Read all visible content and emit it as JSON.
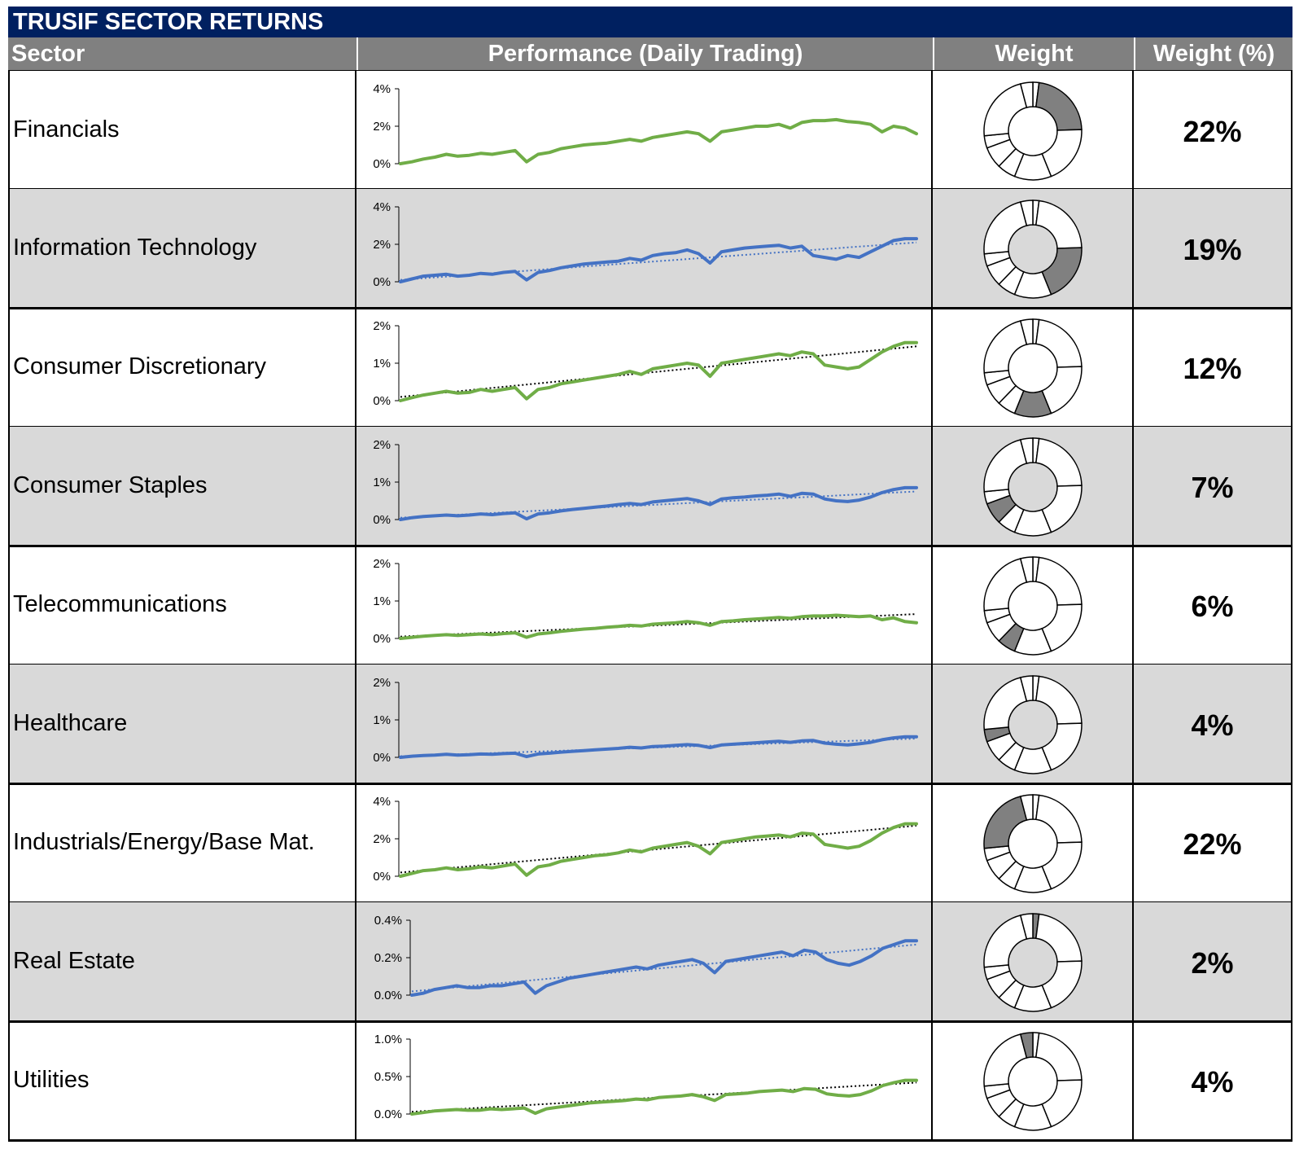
{
  "title": "TRUSIF SECTOR RETURNS",
  "headers": {
    "sector": "Sector",
    "performance": "Performance (Daily Trading)",
    "weight": "Weight",
    "weight_pct": "Weight (%)"
  },
  "colors": {
    "title_bg": "#002060",
    "header_bg": "#808080",
    "green_line": "#70ad47",
    "blue_line": "#4472c4",
    "highlight_segment": "#808080",
    "shaded_row": "#d9d9d9"
  },
  "sectors": [
    {
      "name": "Financials",
      "weight_pct": "22%"
    },
    {
      "name": "Information Technology",
      "weight_pct": "19%"
    },
    {
      "name": "Consumer Discretionary",
      "weight_pct": "12%"
    },
    {
      "name": "Consumer Staples",
      "weight_pct": "7%"
    },
    {
      "name": "Telecommunications",
      "weight_pct": "6%"
    },
    {
      "name": "Healthcare",
      "weight_pct": "4%"
    },
    {
      "name": "Industrials/Energy/Base Mat.",
      "weight_pct": "22%"
    },
    {
      "name": "Real Estate",
      "weight_pct": "2%"
    },
    {
      "name": "Utilities",
      "weight_pct": "4%"
    }
  ],
  "chart_data": [
    {
      "type": "line",
      "sector": "Financials",
      "ytick_labels": [
        "4%",
        "2%",
        "0%"
      ],
      "ylim": [
        0,
        4
      ],
      "line_color": "green",
      "trendline": false,
      "series": [
        {
          "values": [
            0,
            0.1,
            0.25,
            0.35,
            0.5,
            0.4,
            0.45,
            0.55,
            0.5,
            0.6,
            0.7,
            0.1,
            0.5,
            0.6,
            0.8,
            0.9,
            1.0,
            1.05,
            1.1,
            1.2,
            1.3,
            1.2,
            1.4,
            1.5,
            1.6,
            1.7,
            1.6,
            1.2,
            1.7,
            1.8,
            1.9,
            2.0,
            2.0,
            2.1,
            1.9,
            2.2,
            2.3,
            2.3,
            2.35,
            2.25,
            2.2,
            2.1,
            1.7,
            2.0,
            1.9,
            1.6
          ]
        }
      ]
    },
    {
      "type": "line",
      "sector": "Information Technology",
      "ytick_labels": [
        "4%",
        "2%",
        "0%"
      ],
      "ylim": [
        0,
        4
      ],
      "line_color": "blue",
      "trendline": true,
      "trend": [
        0.1,
        2.1
      ],
      "series": [
        {
          "values": [
            0,
            0.15,
            0.3,
            0.35,
            0.4,
            0.3,
            0.35,
            0.45,
            0.4,
            0.5,
            0.55,
            0.1,
            0.5,
            0.6,
            0.75,
            0.85,
            0.95,
            1.0,
            1.05,
            1.1,
            1.25,
            1.15,
            1.4,
            1.5,
            1.55,
            1.7,
            1.5,
            1.0,
            1.6,
            1.7,
            1.8,
            1.85,
            1.9,
            1.95,
            1.8,
            1.9,
            1.4,
            1.3,
            1.2,
            1.4,
            1.3,
            1.6,
            1.9,
            2.2,
            2.3,
            2.3
          ]
        }
      ]
    },
    {
      "type": "line",
      "sector": "Consumer Discretionary",
      "ytick_labels": [
        "2%",
        "1%",
        "0%"
      ],
      "ylim": [
        0,
        2
      ],
      "line_color": "green",
      "trendline": true,
      "trend": [
        0.1,
        1.45
      ],
      "series": [
        {
          "values": [
            0,
            0.08,
            0.15,
            0.2,
            0.25,
            0.2,
            0.22,
            0.3,
            0.25,
            0.3,
            0.35,
            0.05,
            0.3,
            0.35,
            0.45,
            0.5,
            0.55,
            0.6,
            0.65,
            0.7,
            0.78,
            0.7,
            0.85,
            0.9,
            0.95,
            1.0,
            0.95,
            0.65,
            1.0,
            1.05,
            1.1,
            1.15,
            1.2,
            1.25,
            1.2,
            1.3,
            1.25,
            0.95,
            0.9,
            0.85,
            0.9,
            1.1,
            1.3,
            1.45,
            1.55,
            1.55
          ]
        }
      ]
    },
    {
      "type": "line",
      "sector": "Consumer Staples",
      "ytick_labels": [
        "2%",
        "1%",
        "0%"
      ],
      "ylim": [
        0,
        2
      ],
      "line_color": "blue",
      "trendline": true,
      "trend": [
        0.05,
        0.75
      ],
      "series": [
        {
          "values": [
            0,
            0.05,
            0.08,
            0.1,
            0.12,
            0.1,
            0.12,
            0.15,
            0.13,
            0.16,
            0.18,
            0.02,
            0.15,
            0.18,
            0.23,
            0.27,
            0.3,
            0.33,
            0.36,
            0.4,
            0.43,
            0.4,
            0.47,
            0.5,
            0.53,
            0.56,
            0.5,
            0.4,
            0.55,
            0.58,
            0.6,
            0.63,
            0.65,
            0.68,
            0.62,
            0.7,
            0.68,
            0.55,
            0.5,
            0.48,
            0.52,
            0.6,
            0.72,
            0.8,
            0.85,
            0.85
          ]
        }
      ]
    },
    {
      "type": "line",
      "sector": "Telecommunications",
      "ytick_labels": [
        "2%",
        "1%",
        "0%"
      ],
      "ylim": [
        0,
        2
      ],
      "line_color": "green",
      "trendline": true,
      "trend": [
        0.05,
        0.65
      ],
      "series": [
        {
          "values": [
            0,
            0.03,
            0.06,
            0.08,
            0.1,
            0.08,
            0.1,
            0.12,
            0.1,
            0.13,
            0.15,
            0.03,
            0.12,
            0.15,
            0.19,
            0.22,
            0.25,
            0.27,
            0.3,
            0.32,
            0.35,
            0.33,
            0.38,
            0.4,
            0.42,
            0.45,
            0.42,
            0.35,
            0.45,
            0.47,
            0.5,
            0.52,
            0.54,
            0.56,
            0.54,
            0.58,
            0.6,
            0.6,
            0.62,
            0.6,
            0.58,
            0.6,
            0.5,
            0.55,
            0.45,
            0.42
          ]
        }
      ]
    },
    {
      "type": "line",
      "sector": "Healthcare",
      "ytick_labels": [
        "2%",
        "1%",
        "0%"
      ],
      "ylim": [
        0,
        2
      ],
      "line_color": "blue",
      "trendline": true,
      "trend": [
        0.03,
        0.5
      ],
      "series": [
        {
          "values": [
            0,
            0.03,
            0.05,
            0.06,
            0.08,
            0.06,
            0.07,
            0.09,
            0.08,
            0.1,
            0.11,
            0.02,
            0.09,
            0.11,
            0.14,
            0.16,
            0.18,
            0.2,
            0.22,
            0.24,
            0.27,
            0.25,
            0.29,
            0.3,
            0.32,
            0.34,
            0.32,
            0.26,
            0.33,
            0.35,
            0.37,
            0.39,
            0.41,
            0.43,
            0.4,
            0.44,
            0.45,
            0.38,
            0.35,
            0.33,
            0.36,
            0.4,
            0.47,
            0.52,
            0.55,
            0.55
          ]
        }
      ]
    },
    {
      "type": "line",
      "sector": "Industrials/Energy/Base Mat.",
      "ytick_labels": [
        "4%",
        "2%",
        "0%"
      ],
      "ylim": [
        0,
        4
      ],
      "line_color": "green",
      "trendline": true,
      "trend": [
        0.2,
        2.7
      ],
      "series": [
        {
          "values": [
            0,
            0.15,
            0.3,
            0.35,
            0.45,
            0.35,
            0.4,
            0.5,
            0.45,
            0.55,
            0.65,
            0.05,
            0.5,
            0.6,
            0.8,
            0.9,
            1.0,
            1.1,
            1.15,
            1.25,
            1.4,
            1.3,
            1.5,
            1.6,
            1.7,
            1.8,
            1.6,
            1.2,
            1.8,
            1.9,
            2.0,
            2.1,
            2.15,
            2.2,
            2.1,
            2.3,
            2.25,
            1.7,
            1.6,
            1.5,
            1.6,
            1.9,
            2.3,
            2.6,
            2.8,
            2.8
          ]
        }
      ]
    },
    {
      "type": "line",
      "sector": "Real Estate",
      "ytick_labels": [
        "0.4%",
        "0.2%",
        "0.0%"
      ],
      "ylim": [
        0,
        0.4
      ],
      "line_color": "blue",
      "trendline": true,
      "trend": [
        0.02,
        0.27
      ],
      "series": [
        {
          "values": [
            0,
            0.01,
            0.03,
            0.04,
            0.05,
            0.04,
            0.04,
            0.05,
            0.05,
            0.06,
            0.07,
            0.01,
            0.05,
            0.07,
            0.09,
            0.1,
            0.11,
            0.12,
            0.13,
            0.14,
            0.15,
            0.14,
            0.16,
            0.17,
            0.18,
            0.19,
            0.17,
            0.12,
            0.18,
            0.19,
            0.2,
            0.21,
            0.22,
            0.23,
            0.21,
            0.24,
            0.23,
            0.19,
            0.17,
            0.16,
            0.18,
            0.21,
            0.25,
            0.27,
            0.29,
            0.29
          ]
        }
      ]
    },
    {
      "type": "line",
      "sector": "Utilities",
      "ytick_labels": [
        "1.0%",
        "0.5%",
        "0.0%"
      ],
      "ylim": [
        0,
        1
      ],
      "line_color": "green",
      "trendline": true,
      "trend": [
        0.03,
        0.42
      ],
      "series": [
        {
          "values": [
            0,
            0.02,
            0.04,
            0.05,
            0.06,
            0.05,
            0.05,
            0.07,
            0.06,
            0.07,
            0.08,
            0.01,
            0.07,
            0.09,
            0.11,
            0.13,
            0.15,
            0.16,
            0.17,
            0.18,
            0.2,
            0.19,
            0.22,
            0.23,
            0.24,
            0.26,
            0.23,
            0.18,
            0.26,
            0.27,
            0.28,
            0.3,
            0.31,
            0.32,
            0.3,
            0.34,
            0.33,
            0.27,
            0.25,
            0.24,
            0.26,
            0.31,
            0.38,
            0.42,
            0.45,
            0.45
          ]
        }
      ]
    },
    {
      "type": "pie",
      "description": "Weight donut: each row shows the same donut with the row's sector segment highlighted",
      "slice_order": [
        "Real Estate",
        "Financials",
        "Information Technology",
        "Consumer Discretionary",
        "Telecommunications",
        "Consumer Staples",
        "Healthcare",
        "Industrials/Energy/Base Mat.",
        "Utilities"
      ],
      "values": [
        2,
        22,
        19,
        12,
        6,
        7,
        4,
        22,
        4
      ]
    }
  ]
}
